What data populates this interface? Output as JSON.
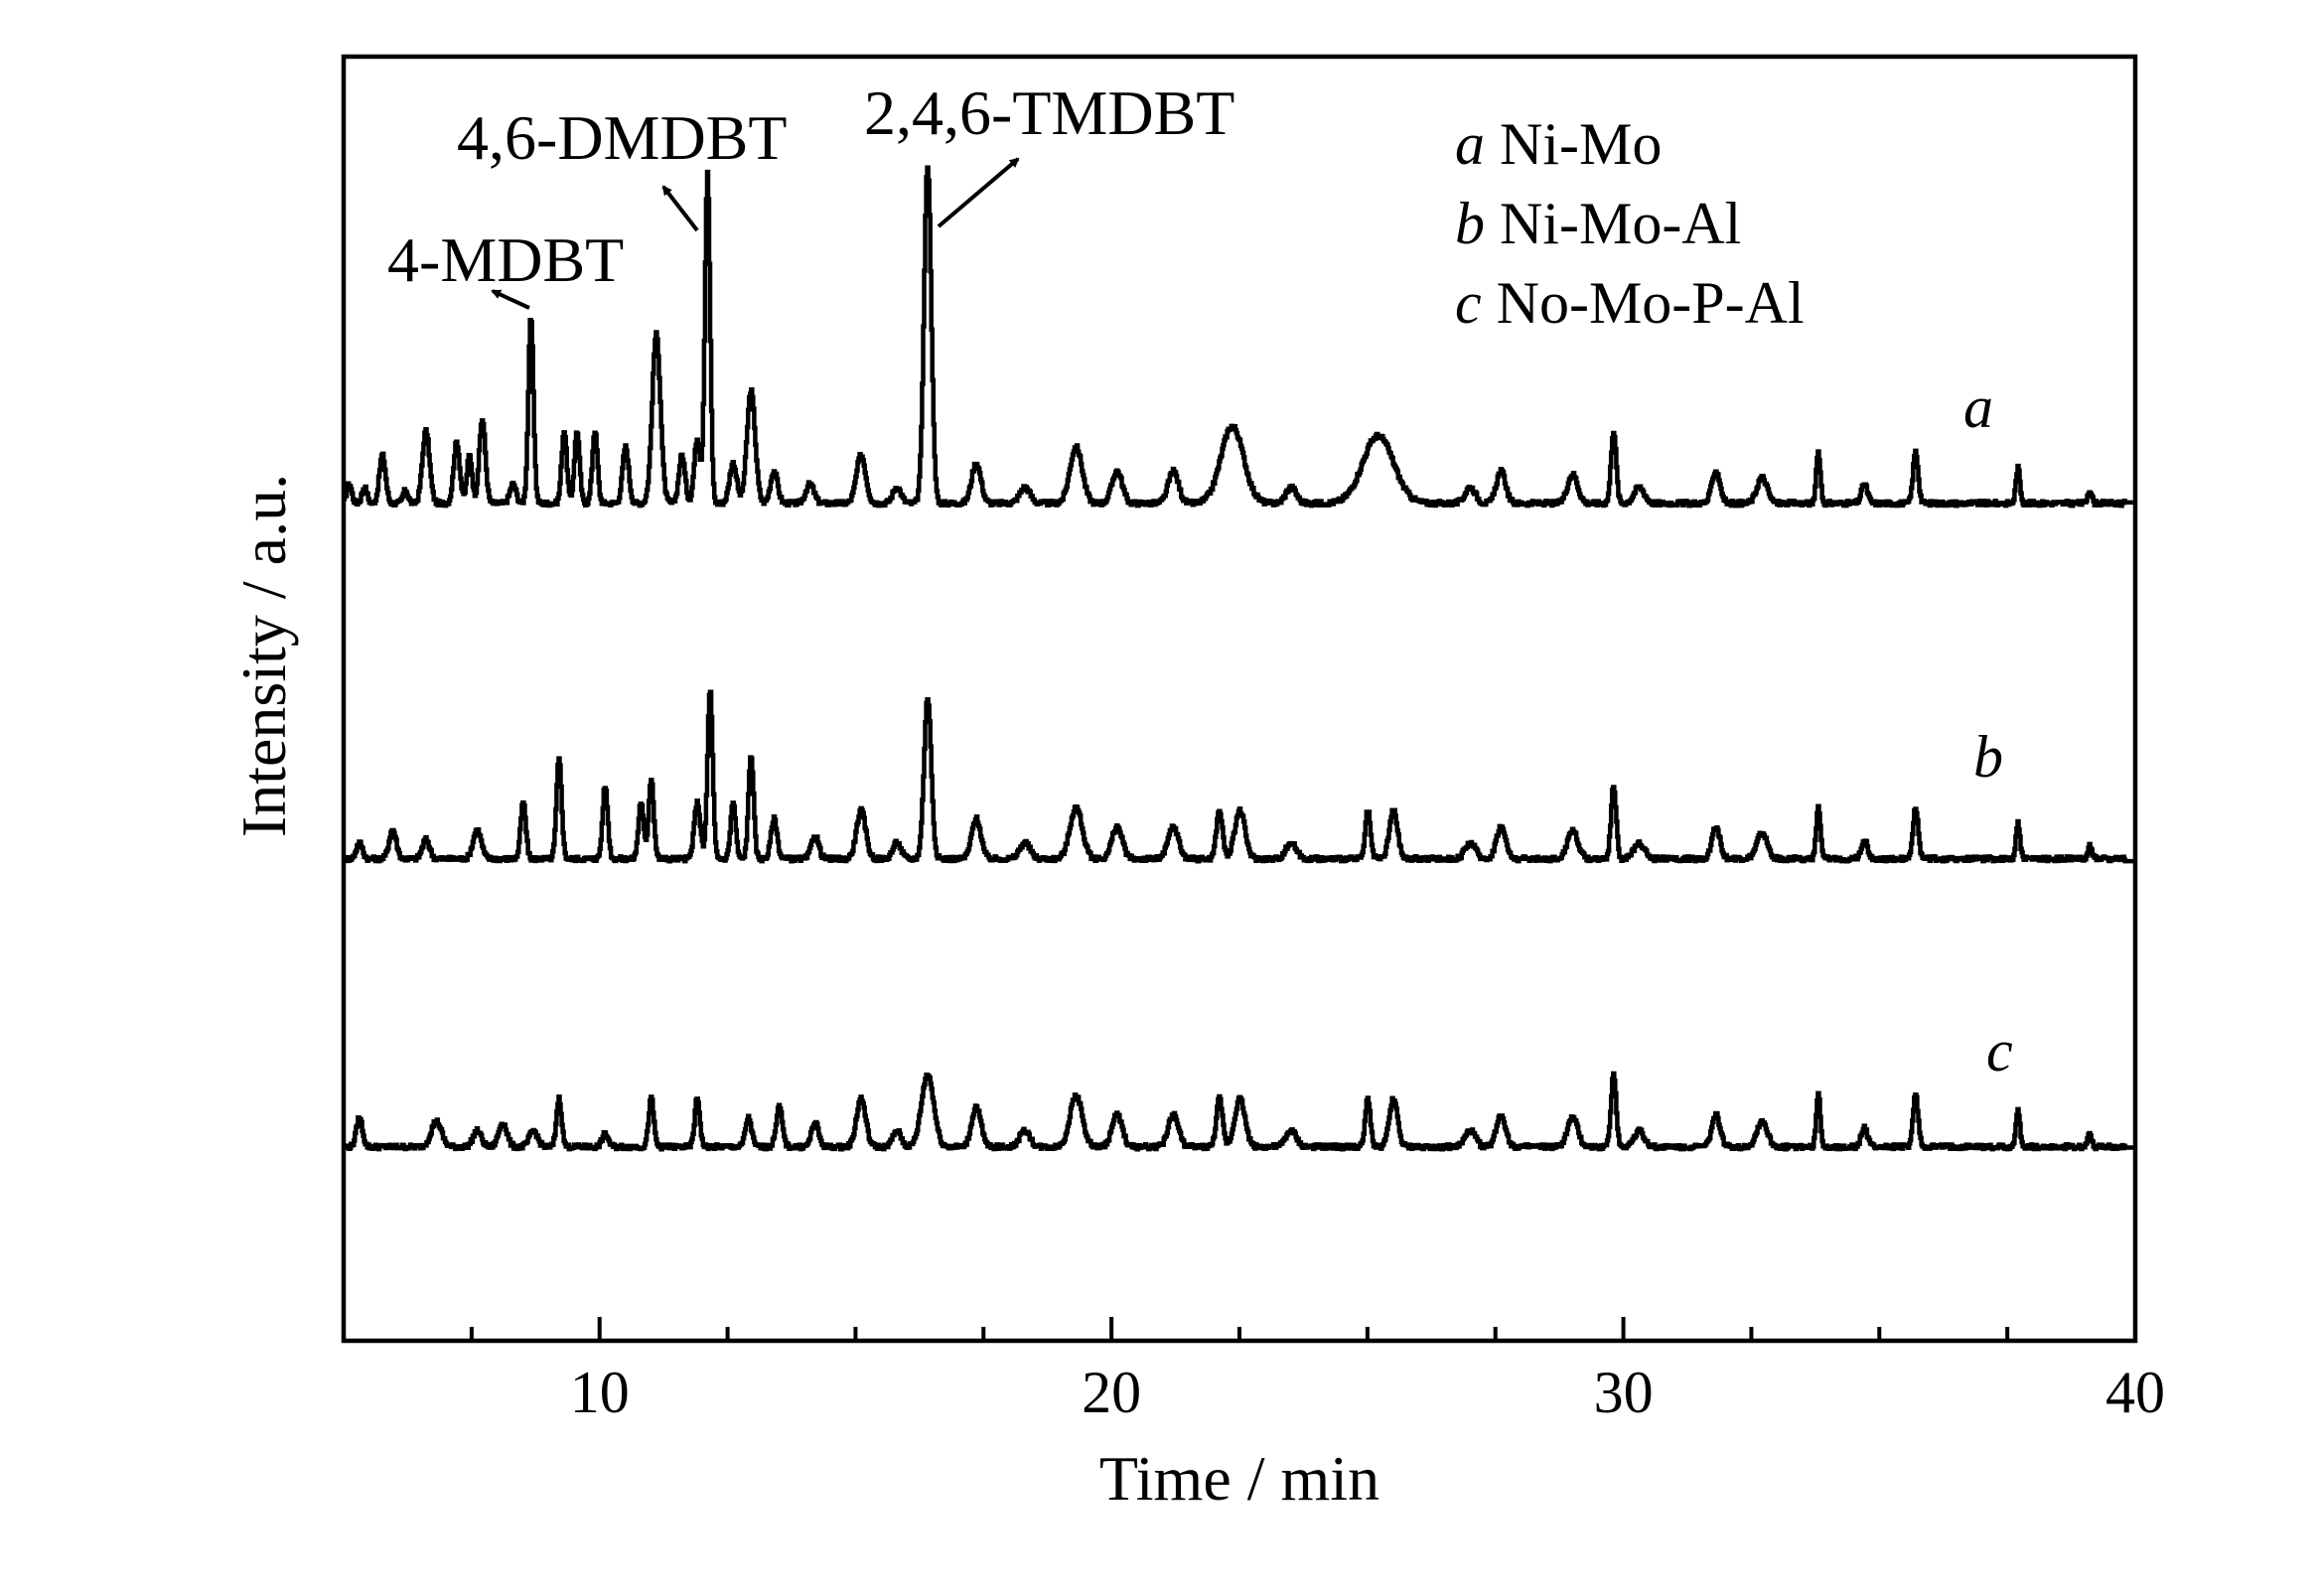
{
  "chart_data": {
    "type": "line",
    "xlabel": "Time / min",
    "ylabel": "Intensity / a.u.",
    "xlim": [
      5,
      40
    ],
    "x_ticks": [
      "10",
      "20",
      "30",
      "40"
    ],
    "legend": {
      "placement": "top-right",
      "entries": [
        {
          "key": "a",
          "label": "Ni-Mo"
        },
        {
          "key": "b",
          "label": "Ni-Mo-Al"
        },
        {
          "key": "c",
          "label": "No-Mo-P-Al"
        }
      ]
    },
    "annotations": [
      {
        "text": "4-MDBT",
        "x": 8.6
      },
      {
        "text": "4,6-DMDBT",
        "x": 12.1
      },
      {
        "text": "2,4,6-TMDBT",
        "x": 16.5
      }
    ],
    "series": [
      {
        "name": "a",
        "baseline": 0,
        "peaks": [
          [
            5.1,
            12,
            0.05
          ],
          [
            5.4,
            10,
            0.05
          ],
          [
            5.75,
            30,
            0.06
          ],
          [
            6.2,
            8,
            0.05
          ],
          [
            6.6,
            45,
            0.07
          ],
          [
            7.2,
            38,
            0.06
          ],
          [
            7.45,
            30,
            0.05
          ],
          [
            7.7,
            52,
            0.06
          ],
          [
            8.3,
            12,
            0.06
          ],
          [
            8.65,
            115,
            0.05
          ],
          [
            9.3,
            45,
            0.05
          ],
          [
            9.55,
            45,
            0.05
          ],
          [
            9.9,
            45,
            0.05
          ],
          [
            10.5,
            35,
            0.06
          ],
          [
            11.1,
            105,
            0.08
          ],
          [
            11.6,
            30,
            0.06
          ],
          [
            11.9,
            40,
            0.06
          ],
          [
            12.1,
            205,
            0.05
          ],
          [
            12.6,
            25,
            0.07
          ],
          [
            12.95,
            70,
            0.08
          ],
          [
            13.4,
            20,
            0.07
          ],
          [
            14.1,
            12,
            0.08
          ],
          [
            15.1,
            30,
            0.09
          ],
          [
            15.8,
            10,
            0.08
          ],
          [
            16.4,
            210,
            0.07
          ],
          [
            17.35,
            25,
            0.09
          ],
          [
            18.3,
            10,
            0.1
          ],
          [
            19.3,
            35,
            0.12
          ],
          [
            20.1,
            20,
            0.1
          ],
          [
            21.2,
            20,
            0.1
          ],
          [
            22.35,
            48,
            0.22
          ],
          [
            23.5,
            10,
            0.1
          ],
          [
            25.2,
            42,
            0.3
          ],
          [
            27.0,
            10,
            0.1
          ],
          [
            27.6,
            20,
            0.09
          ],
          [
            29.0,
            18,
            0.1
          ],
          [
            29.8,
            45,
            0.05
          ],
          [
            30.3,
            10,
            0.1
          ],
          [
            31.8,
            20,
            0.08
          ],
          [
            32.7,
            16,
            0.1
          ],
          [
            33.8,
            32,
            0.04
          ],
          [
            34.7,
            12,
            0.06
          ],
          [
            35.7,
            32,
            0.05
          ],
          [
            37.7,
            22,
            0.04
          ],
          [
            39.1,
            8,
            0.04
          ]
        ]
      },
      {
        "name": "b",
        "baseline": 0,
        "peaks": [
          [
            5.3,
            10,
            0.06
          ],
          [
            5.95,
            18,
            0.07
          ],
          [
            6.6,
            12,
            0.07
          ],
          [
            7.6,
            18,
            0.08
          ],
          [
            8.5,
            35,
            0.05
          ],
          [
            9.2,
            62,
            0.05
          ],
          [
            10.1,
            45,
            0.05
          ],
          [
            10.8,
            35,
            0.05
          ],
          [
            11.0,
            50,
            0.05
          ],
          [
            11.9,
            35,
            0.06
          ],
          [
            12.15,
            105,
            0.05
          ],
          [
            12.6,
            35,
            0.05
          ],
          [
            12.95,
            65,
            0.05
          ],
          [
            13.4,
            25,
            0.06
          ],
          [
            14.2,
            15,
            0.07
          ],
          [
            15.1,
            30,
            0.09
          ],
          [
            15.8,
            10,
            0.08
          ],
          [
            16.4,
            100,
            0.07
          ],
          [
            17.35,
            25,
            0.09
          ],
          [
            18.3,
            10,
            0.1
          ],
          [
            19.3,
            32,
            0.12
          ],
          [
            20.1,
            20,
            0.1
          ],
          [
            21.2,
            20,
            0.1
          ],
          [
            22.1,
            30,
            0.06
          ],
          [
            22.5,
            30,
            0.1
          ],
          [
            23.5,
            10,
            0.1
          ],
          [
            25.0,
            30,
            0.05
          ],
          [
            25.5,
            30,
            0.08
          ],
          [
            27.0,
            10,
            0.1
          ],
          [
            27.6,
            20,
            0.09
          ],
          [
            29.0,
            18,
            0.1
          ],
          [
            29.8,
            45,
            0.05
          ],
          [
            30.3,
            10,
            0.1
          ],
          [
            31.8,
            20,
            0.08
          ],
          [
            32.7,
            16,
            0.1
          ],
          [
            33.8,
            32,
            0.04
          ],
          [
            34.7,
            12,
            0.06
          ],
          [
            35.7,
            32,
            0.05
          ],
          [
            37.7,
            22,
            0.04
          ],
          [
            39.1,
            8,
            0.04
          ]
        ]
      },
      {
        "name": "c",
        "baseline": 0,
        "peaks": [
          [
            5.3,
            18,
            0.06
          ],
          [
            6.8,
            16,
            0.1
          ],
          [
            7.6,
            10,
            0.08
          ],
          [
            8.1,
            15,
            0.08
          ],
          [
            8.7,
            10,
            0.08
          ],
          [
            9.2,
            30,
            0.05
          ],
          [
            10.1,
            8,
            0.06
          ],
          [
            11.0,
            30,
            0.05
          ],
          [
            11.9,
            30,
            0.05
          ],
          [
            12.9,
            18,
            0.06
          ],
          [
            13.5,
            25,
            0.06
          ],
          [
            14.2,
            15,
            0.07
          ],
          [
            15.1,
            30,
            0.09
          ],
          [
            15.8,
            10,
            0.08
          ],
          [
            16.4,
            45,
            0.12
          ],
          [
            17.35,
            25,
            0.09
          ],
          [
            18.3,
            10,
            0.1
          ],
          [
            19.3,
            32,
            0.12
          ],
          [
            20.1,
            20,
            0.1
          ],
          [
            21.2,
            20,
            0.1
          ],
          [
            22.1,
            30,
            0.06
          ],
          [
            22.5,
            30,
            0.1
          ],
          [
            23.5,
            10,
            0.1
          ],
          [
            25.0,
            30,
            0.05
          ],
          [
            25.5,
            30,
            0.08
          ],
          [
            27.0,
            10,
            0.1
          ],
          [
            27.6,
            20,
            0.09
          ],
          [
            29.0,
            18,
            0.1
          ],
          [
            29.8,
            45,
            0.05
          ],
          [
            30.3,
            10,
            0.1
          ],
          [
            31.8,
            20,
            0.08
          ],
          [
            32.7,
            16,
            0.1
          ],
          [
            33.8,
            32,
            0.04
          ],
          [
            34.7,
            12,
            0.06
          ],
          [
            35.7,
            32,
            0.05
          ],
          [
            37.7,
            22,
            0.04
          ],
          [
            39.1,
            8,
            0.04
          ]
        ]
      }
    ]
  }
}
